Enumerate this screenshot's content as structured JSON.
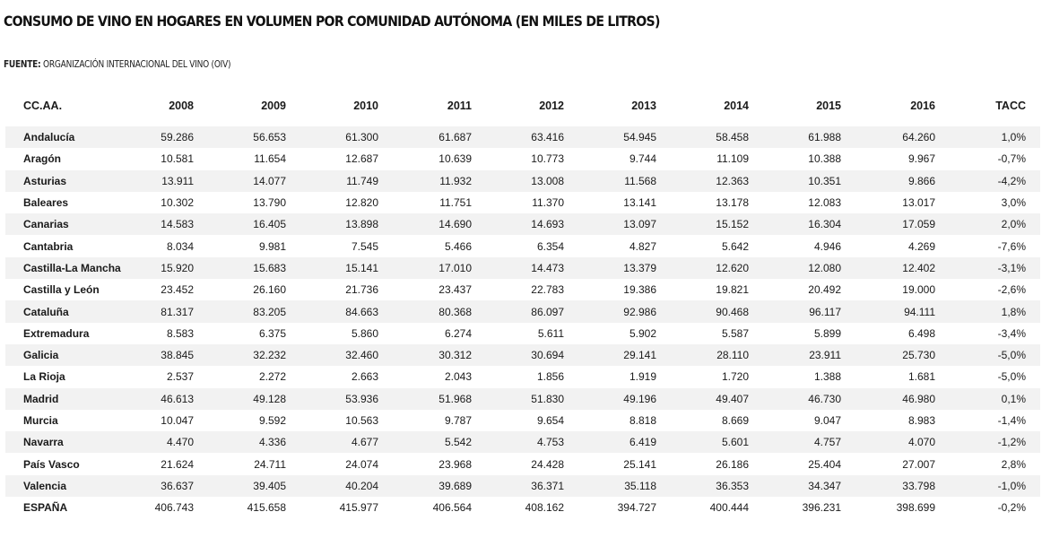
{
  "title": "CONSUMO DE VINO EN HOGARES EN VOLUMEN POR COMUNIDAD AUTÓNOMA (EN MILES DE LITROS)",
  "source": {
    "label": "FUENTE:",
    "text": "ORGANIZACIÓN INTERNACIONAL DEL VINO (OIV)"
  },
  "table": {
    "headers": [
      "CC.AA.",
      "2008",
      "2009",
      "2010",
      "2011",
      "2012",
      "2013",
      "2014",
      "2015",
      "2016",
      "TACC"
    ],
    "rows": [
      [
        "Andalucía",
        "59.286",
        "56.653",
        "61.300",
        "61.687",
        "63.416",
        "54.945",
        "58.458",
        "61.988",
        "64.260",
        "1,0%"
      ],
      [
        "Aragón",
        "10.581",
        "11.654",
        "12.687",
        "10.639",
        "10.773",
        "9.744",
        "11.109",
        "10.388",
        "9.967",
        "-0,7%"
      ],
      [
        "Asturias",
        "13.911",
        "14.077",
        "11.749",
        "11.932",
        "13.008",
        "11.568",
        "12.363",
        "10.351",
        "9.866",
        "-4,2%"
      ],
      [
        "Baleares",
        "10.302",
        "13.790",
        "12.820",
        "11.751",
        "11.370",
        "13.141",
        "13.178",
        "12.083",
        "13.017",
        "3,0%"
      ],
      [
        "Canarias",
        "14.583",
        "16.405",
        "13.898",
        "14.690",
        "14.693",
        "13.097",
        "15.152",
        "16.304",
        "17.059",
        "2,0%"
      ],
      [
        "Cantabria",
        "8.034",
        "9.981",
        "7.545",
        "5.466",
        "6.354",
        "4.827",
        "5.642",
        "4.946",
        "4.269",
        "-7,6%"
      ],
      [
        "Castilla-La Mancha",
        "15.920",
        "15.683",
        "15.141",
        "17.010",
        "14.473",
        "13.379",
        "12.620",
        "12.080",
        "12.402",
        "-3,1%"
      ],
      [
        "Castilla y León",
        "23.452",
        "26.160",
        "21.736",
        "23.437",
        "22.783",
        "19.386",
        "19.821",
        "20.492",
        "19.000",
        "-2,6%"
      ],
      [
        "Cataluña",
        "81.317",
        "83.205",
        "84.663",
        "80.368",
        "86.097",
        "92.986",
        "90.468",
        "96.117",
        "94.111",
        "1,8%"
      ],
      [
        "Extremadura",
        "8.583",
        "6.375",
        "5.860",
        "6.274",
        "5.611",
        "5.902",
        "5.587",
        "5.899",
        "6.498",
        "-3,4%"
      ],
      [
        "Galicia",
        "38.845",
        "32.232",
        "32.460",
        "30.312",
        "30.694",
        "29.141",
        "28.110",
        "23.911",
        "25.730",
        "-5,0%"
      ],
      [
        "La Rioja",
        "2.537",
        "2.272",
        "2.663",
        "2.043",
        "1.856",
        "1.919",
        "1.720",
        "1.388",
        "1.681",
        "-5,0%"
      ],
      [
        "Madrid",
        "46.613",
        "49.128",
        "53.936",
        "51.968",
        "51.830",
        "49.196",
        "49.407",
        "46.730",
        "46.980",
        "0,1%"
      ],
      [
        "Murcia",
        "10.047",
        "9.592",
        "10.563",
        "9.787",
        "9.654",
        "8.818",
        "8.669",
        "9.047",
        "8.983",
        "-1,4%"
      ],
      [
        "Navarra",
        "4.470",
        "4.336",
        "4.677",
        "5.542",
        "4.753",
        "6.419",
        "5.601",
        "4.757",
        "4.070",
        "-1,2%"
      ],
      [
        "País Vasco",
        "21.624",
        "24.711",
        "24.074",
        "23.968",
        "24.428",
        "25.141",
        "26.186",
        "25.404",
        "27.007",
        "2,8%"
      ],
      [
        "Valencia",
        "36.637",
        "39.405",
        "40.204",
        "39.689",
        "36.371",
        "35.118",
        "36.353",
        "34.347",
        "33.798",
        "-1,0%"
      ],
      [
        "ESPAÑA",
        "406.743",
        "415.658",
        "415.977",
        "406.564",
        "408.162",
        "394.727",
        "400.444",
        "396.231",
        "398.699",
        "-0,2%"
      ]
    ]
  },
  "colors": {
    "stripe": "#f2f2f2",
    "text": "#1a1a1a"
  }
}
